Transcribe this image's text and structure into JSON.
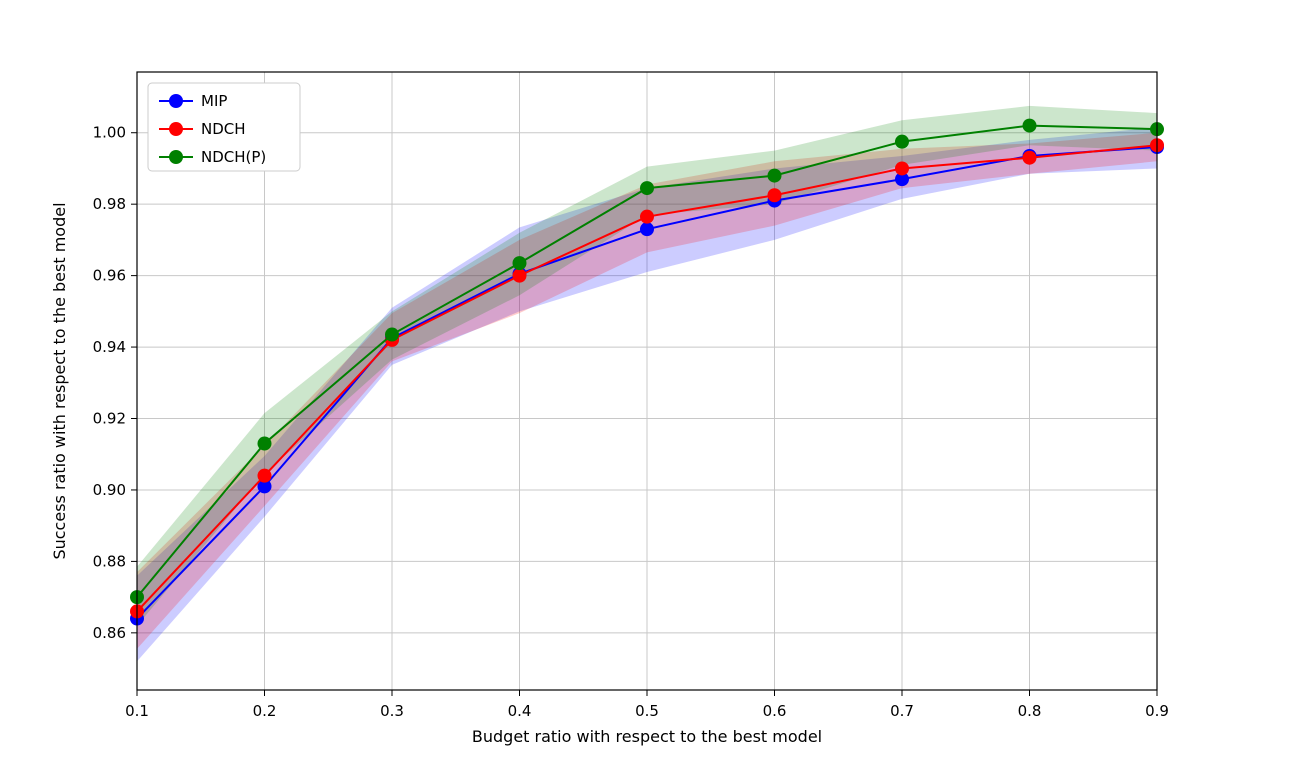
{
  "figure": {
    "background": "#ffffff"
  },
  "chart_data": {
    "type": "line",
    "title": "",
    "xlabel": "Budget ratio with respect to the best model",
    "ylabel": "Success ratio with respect to the best model",
    "x": [
      0.1,
      0.2,
      0.3,
      0.4,
      0.5,
      0.6,
      0.7,
      0.8,
      0.9
    ],
    "xticks": [
      0.1,
      0.2,
      0.3,
      0.4,
      0.5,
      0.6,
      0.7,
      0.8,
      0.9
    ],
    "yticks": [
      0.86,
      0.88,
      0.9,
      0.92,
      0.94,
      0.96,
      0.98,
      1.0
    ],
    "xlim": [
      0.1,
      0.9
    ],
    "ylim": [
      0.844,
      1.017
    ],
    "grid": true,
    "legend_position": "upper left",
    "band_opacity": 0.2,
    "grid_color": "#c8c8c8",
    "series": [
      {
        "name": "MIP",
        "color": "#0000ff",
        "values": [
          0.864,
          0.901,
          0.9425,
          0.9605,
          0.973,
          0.981,
          0.987,
          0.9935,
          0.996
        ],
        "band_lower": [
          0.852,
          0.8925,
          0.935,
          0.95,
          0.961,
          0.97,
          0.9815,
          0.9885,
          0.99
        ],
        "band_upper": [
          0.876,
          0.9095,
          0.951,
          0.9735,
          0.9845,
          0.99,
          0.9935,
          0.998,
          1.0015
        ]
      },
      {
        "name": "NDCH",
        "color": "#ff0000",
        "values": [
          0.866,
          0.904,
          0.942,
          0.96,
          0.9765,
          0.9825,
          0.99,
          0.993,
          0.9965
        ],
        "band_lower": [
          0.8555,
          0.8955,
          0.936,
          0.9495,
          0.9665,
          0.974,
          0.9845,
          0.9885,
          0.992
        ],
        "band_upper": [
          0.877,
          0.9125,
          0.9495,
          0.97,
          0.9855,
          0.992,
          0.9955,
          0.997,
          1.0
        ]
      },
      {
        "name": "NDCH(P)",
        "color": "#008000",
        "values": [
          0.87,
          0.913,
          0.9435,
          0.9635,
          0.9845,
          0.988,
          0.9975,
          1.002,
          1.001
        ],
        "band_lower": [
          0.862,
          0.9045,
          0.9365,
          0.9545,
          0.977,
          0.98,
          0.991,
          0.9965,
          0.995
        ],
        "band_upper": [
          0.8785,
          0.9215,
          0.95,
          0.972,
          0.9905,
          0.995,
          1.0035,
          1.0075,
          1.0055
        ]
      }
    ]
  }
}
